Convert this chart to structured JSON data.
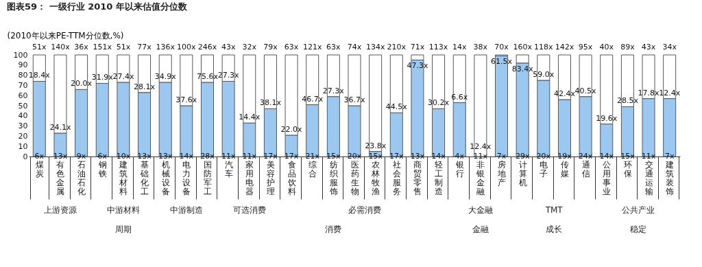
{
  "chart_data": {
    "type": "bar",
    "title": "图表59： 一级行业 2010 年以来估值分位数",
    "ylabel": "(2010年以来PE-TTM分位数,%)",
    "categories": [
      "煤炭",
      "有色金属",
      "石油石化",
      "钢铁",
      "建筑材料",
      "基础化工",
      "机械设备",
      "电力设备",
      "国防军工",
      "汽车",
      "家用电器",
      "美容护理",
      "食品饮料",
      "综合",
      "纺织服饰",
      "医药生物",
      "农林牧渔",
      "社会服务",
      "商贸零售",
      "轻工制造",
      "银行",
      "非银金融",
      "房地产",
      "计算机",
      "电子",
      "传媒",
      "通信",
      "公用事业",
      "环保",
      "交通运输",
      "建筑装饰"
    ],
    "stacked": true,
    "series": [
      {
        "color": "#9cc8f0",
        "values": [
          74,
          23,
          66,
          72,
          73,
          63,
          73,
          50,
          73,
          74,
          33,
          47,
          21,
          51,
          59,
          50,
          5,
          43,
          95,
          47,
          53,
          0,
          99,
          92,
          75,
          56,
          59,
          32,
          49,
          57,
          57
        ]
      },
      {
        "color": "#ffffff",
        "values": [
          26,
          77,
          34,
          28,
          27,
          37,
          27,
          50,
          27,
          26,
          67,
          53,
          79,
          49,
          41,
          50,
          95,
          57,
          5,
          53,
          47,
          100,
          1,
          8,
          25,
          44,
          41,
          68,
          51,
          43,
          43
        ]
      }
    ],
    "ylim": [
      0,
      100
    ],
    "yticks": [
      0,
      10,
      20,
      30,
      40,
      50,
      60,
      70,
      80,
      90,
      100
    ],
    "annotations": [
      {
        "text": "51x",
        "x": "煤炭",
        "y": 100
      },
      {
        "text": "140x",
        "x": "有色金属",
        "y": 100
      },
      {
        "text": "36x",
        "x": "石油石化",
        "y": 100
      },
      {
        "text": "151x",
        "x": "钢铁",
        "y": 100
      },
      {
        "text": "51x",
        "x": "建筑材料",
        "y": 100
      },
      {
        "text": "77x",
        "x": "基础化工",
        "y": 100
      },
      {
        "text": "136x",
        "x": "机械设备",
        "y": 100
      },
      {
        "text": "100x",
        "x": "电力设备",
        "y": 100
      },
      {
        "text": "246x",
        "x": "国防军工",
        "y": 100
      },
      {
        "text": "43x",
        "x": "汽车",
        "y": 100
      },
      {
        "text": "32x",
        "x": "家用电器",
        "y": 100
      },
      {
        "text": "79x",
        "x": "美容护理",
        "y": 100
      },
      {
        "text": "63x",
        "x": "食品饮料",
        "y": 100
      },
      {
        "text": "121x",
        "x": "综合",
        "y": 100
      },
      {
        "text": "63x",
        "x": "纺织服饰",
        "y": 100
      },
      {
        "text": "74x",
        "x": "医药生物",
        "y": 100
      },
      {
        "text": "134x",
        "x": "农林牧渔",
        "y": 100
      },
      {
        "text": "210x",
        "x": "社会服务",
        "y": 100
      },
      {
        "text": "71x",
        "x": "商贸零售",
        "y": 100
      },
      {
        "text": "113x",
        "x": "轻工制造",
        "y": 100
      },
      {
        "text": "14x",
        "x": "银行",
        "y": 100
      },
      {
        "text": "38x",
        "x": "非银金融",
        "y": 100
      },
      {
        "text": "70x",
        "x": "房地产",
        "y": 100
      },
      {
        "text": "160x",
        "x": "计算机",
        "y": 100
      },
      {
        "text": "118x",
        "x": "电子",
        "y": 100
      },
      {
        "text": "142x",
        "x": "传媒",
        "y": 100
      },
      {
        "text": "95x",
        "x": "通信",
        "y": 100
      },
      {
        "text": "40x",
        "x": "公用事业",
        "y": 100
      },
      {
        "text": "89x",
        "x": "环保",
        "y": 100
      },
      {
        "text": "43x",
        "x": "交通运输",
        "y": 100
      },
      {
        "text": "34x",
        "x": "建筑装饰",
        "y": 100
      },
      {
        "text": "18.4x",
        "x": "煤炭",
        "y": 74
      },
      {
        "text": "24.1x",
        "x": "有色金属",
        "y": 23
      },
      {
        "text": "20.0x",
        "x": "石油石化",
        "y": 66
      },
      {
        "text": "31.9x",
        "x": "钢铁",
        "y": 72
      },
      {
        "text": "27.4x",
        "x": "建筑材料",
        "y": 73
      },
      {
        "text": "28.1x",
        "x": "基础化工",
        "y": 63
      },
      {
        "text": "34.9x",
        "x": "机械设备",
        "y": 73
      },
      {
        "text": "37.6x",
        "x": "电力设备",
        "y": 50
      },
      {
        "text": "75.6x",
        "x": "国防军工",
        "y": 73
      },
      {
        "text": "27.3x",
        "x": "汽车",
        "y": 74
      },
      {
        "text": "14.4x",
        "x": "家用电器",
        "y": 33
      },
      {
        "text": "38.1x",
        "x": "美容护理",
        "y": 47
      },
      {
        "text": "22.0x",
        "x": "食品饮料",
        "y": 21
      },
      {
        "text": "46.7x",
        "x": "综合",
        "y": 51
      },
      {
        "text": "27.3x",
        "x": "纺织服饰",
        "y": 59
      },
      {
        "text": "36.7x",
        "x": "医药生物",
        "y": 50
      },
      {
        "text": "23.8x",
        "x": "农林牧渔",
        "y": 5
      },
      {
        "text": "44.5x",
        "x": "社会服务",
        "y": 43
      },
      {
        "text": "47.3x",
        "x": "商贸零售",
        "y": 95
      },
      {
        "text": "30.2x",
        "x": "轻工制造",
        "y": 47
      },
      {
        "text": "6.6x",
        "x": "银行",
        "y": 53
      },
      {
        "text": "12.4x",
        "x": "非银金融",
        "y": 0
      },
      {
        "text": "61.5x",
        "x": "房地产",
        "y": 99
      },
      {
        "text": "83.4x",
        "x": "计算机",
        "y": 92
      },
      {
        "text": "59.0x",
        "x": "电子",
        "y": 75
      },
      {
        "text": "42.4x",
        "x": "传媒",
        "y": 56
      },
      {
        "text": "40.5x",
        "x": "通信",
        "y": 59
      },
      {
        "text": "19.6x",
        "x": "公用事业",
        "y": 32
      },
      {
        "text": "28.5x",
        "x": "环保",
        "y": 49
      },
      {
        "text": "17.8x",
        "x": "交通运输",
        "y": 57
      },
      {
        "text": "12.4x",
        "x": "建筑装饰",
        "y": 57
      },
      {
        "text": "6x",
        "x": "煤炭",
        "y": 0
      },
      {
        "text": "13x",
        "x": "有色金属",
        "y": 0
      },
      {
        "text": "9x",
        "x": "石油石化",
        "y": 0
      },
      {
        "text": "6x",
        "x": "钢铁",
        "y": 0
      },
      {
        "text": "10x",
        "x": "建筑材料",
        "y": 0
      },
      {
        "text": "13x",
        "x": "基础化工",
        "y": 0
      },
      {
        "text": "13x",
        "x": "机械设备",
        "y": 0
      },
      {
        "text": "14x",
        "x": "电力设备",
        "y": 0
      },
      {
        "text": "28x",
        "x": "国防军工",
        "y": 0
      },
      {
        "text": "11x",
        "x": "汽车",
        "y": 0
      },
      {
        "text": "11x",
        "x": "家用电器",
        "y": 0
      },
      {
        "text": "17x",
        "x": "美容护理",
        "y": 0
      },
      {
        "text": "17x",
        "x": "食品饮料",
        "y": 0
      },
      {
        "text": "21x",
        "x": "综合",
        "y": 0
      },
      {
        "text": "15x",
        "x": "纺织服饰",
        "y": 0
      },
      {
        "text": "20x",
        "x": "医药生物",
        "y": 0
      },
      {
        "text": "15x",
        "x": "农林牧渔",
        "y": 0
      },
      {
        "text": "17x",
        "x": "社会服务",
        "y": 0
      },
      {
        "text": "13x",
        "x": "商贸零售",
        "y": 0
      },
      {
        "text": "14x",
        "x": "轻工制造",
        "y": 0
      },
      {
        "text": "4x",
        "x": "银行",
        "y": 0
      },
      {
        "text": "11x",
        "x": "非银金融",
        "y": 0
      },
      {
        "text": "7x",
        "x": "房地产",
        "y": 0
      },
      {
        "text": "29x",
        "x": "计算机",
        "y": 0
      },
      {
        "text": "20x",
        "x": "电子",
        "y": 0
      },
      {
        "text": "19x",
        "x": "传媒",
        "y": 0
      },
      {
        "text": "24x",
        "x": "通信",
        "y": 0
      },
      {
        "text": "14x",
        "x": "公用事业",
        "y": 0
      },
      {
        "text": "15x",
        "x": "环保",
        "y": 0
      },
      {
        "text": "11x",
        "x": "交通运输",
        "y": 0
      },
      {
        "text": "7x",
        "x": "建筑装饰",
        "y": 0
      },
      "上游资源",
      "中游材料",
      "中游制造",
      "可选消费",
      "必需消费",
      "大金融",
      "TMT",
      "公共产业",
      "周期",
      "消费",
      "金融",
      "成长",
      "稳定"
    ]
  }
}
